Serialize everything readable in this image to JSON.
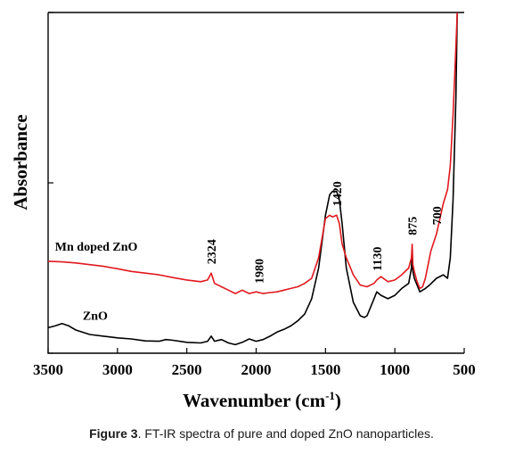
{
  "chart_data": {
    "type": "line",
    "xlabel": "Wavenumber (cm",
    "xlabel_sup": "-1",
    "xlabel_close": ")",
    "ylabel": "Absorbance",
    "xlim": [
      3500,
      500
    ],
    "x_reversed": true,
    "x_ticks": [
      "3500",
      "3000",
      "2500",
      "2000",
      "1500",
      "1000",
      "500"
    ],
    "x_tick_values": [
      3500,
      3000,
      2500,
      2000,
      1500,
      1000,
      500
    ],
    "ylim": [
      0,
      100
    ],
    "y_ticks_labeled": false,
    "grid": false,
    "series": [
      {
        "name": "ZnO",
        "color": "#000000",
        "x": [
          3500,
          3450,
          3400,
          3350,
          3300,
          3200,
          3100,
          3000,
          2900,
          2800,
          2700,
          2650,
          2600,
          2500,
          2400,
          2350,
          2324,
          2300,
          2250,
          2200,
          2150,
          2100,
          2050,
          2000,
          1950,
          1900,
          1850,
          1800,
          1750,
          1700,
          1650,
          1600,
          1550,
          1500,
          1470,
          1450,
          1420,
          1400,
          1380,
          1350,
          1300,
          1250,
          1220,
          1200,
          1150,
          1130,
          1100,
          1050,
          1000,
          950,
          900,
          880,
          875,
          870,
          860,
          840,
          820,
          800,
          780,
          750,
          700,
          650,
          620,
          600,
          580,
          560,
          550
        ],
        "y": [
          7.5,
          8.0,
          8.7,
          8.0,
          6.8,
          5.5,
          5.0,
          4.5,
          4.2,
          3.6,
          3.5,
          4.0,
          3.8,
          3.2,
          3.0,
          3.5,
          5.0,
          3.5,
          4.0,
          3.0,
          2.5,
          3.2,
          4.2,
          3.5,
          4.0,
          5.0,
          6.2,
          7.0,
          8.0,
          9.5,
          11.5,
          16.0,
          25.0,
          40.5,
          46.5,
          47.5,
          47.5,
          45.0,
          38.0,
          25.0,
          15.0,
          11.0,
          10.5,
          11.0,
          16.0,
          18.0,
          17.0,
          16.0,
          17.0,
          19.0,
          20.5,
          25.0,
          30.0,
          24.0,
          22.0,
          20.0,
          18.0,
          18.5,
          19.0,
          20.0,
          22.0,
          23.0,
          22.0,
          28.0,
          45.0,
          75.0,
          100.0
        ]
      },
      {
        "name": "Mn doped ZnO",
        "color": "#e0191f",
        "x": [
          3500,
          3400,
          3300,
          3200,
          3100,
          3000,
          2900,
          2800,
          2700,
          2600,
          2500,
          2400,
          2350,
          2324,
          2300,
          2250,
          2200,
          2150,
          2100,
          2050,
          2000,
          1950,
          1900,
          1850,
          1800,
          1750,
          1700,
          1650,
          1600,
          1550,
          1500,
          1470,
          1450,
          1420,
          1400,
          1380,
          1350,
          1300,
          1250,
          1200,
          1150,
          1130,
          1100,
          1050,
          1000,
          950,
          900,
          880,
          875,
          870,
          860,
          840,
          820,
          800,
          780,
          760,
          740,
          700,
          650,
          620,
          600,
          580,
          560,
          550
        ],
        "y": [
          27.0,
          26.8,
          26.5,
          26.0,
          25.5,
          24.8,
          24.0,
          23.5,
          23.0,
          22.2,
          21.5,
          21.0,
          21.5,
          23.5,
          20.5,
          19.5,
          18.5,
          17.5,
          18.5,
          17.5,
          18.0,
          17.5,
          17.8,
          18.0,
          18.5,
          19.0,
          19.5,
          20.5,
          22.0,
          28.0,
          39.5,
          40.5,
          40.0,
          40.5,
          38.0,
          32.0,
          28.0,
          23.0,
          20.0,
          19.5,
          20.5,
          21.5,
          22.5,
          21.0,
          21.5,
          23.0,
          25.0,
          28.0,
          32.0,
          26.0,
          24.0,
          21.0,
          19.0,
          19.5,
          22.0,
          26.0,
          30.0,
          35.0,
          44.0,
          48.0,
          55.0,
          70.0,
          90.0,
          100.0
        ]
      }
    ],
    "annotations": [
      {
        "text": "2324",
        "x": 2324
      },
      {
        "text": "1980",
        "x": 1980
      },
      {
        "text": "1420",
        "x": 1420
      },
      {
        "text": "1130",
        "x": 1130
      },
      {
        "text": "875",
        "x": 875
      },
      {
        "text": "700",
        "x": 700
      }
    ],
    "series_labels": [
      {
        "text": "Mn doped ZnO"
      },
      {
        "text": "ZnO"
      }
    ]
  },
  "caption": {
    "label": "Figure 3",
    "text": ". FT-IR spectra of pure and doped ZnO nanoparticles."
  }
}
